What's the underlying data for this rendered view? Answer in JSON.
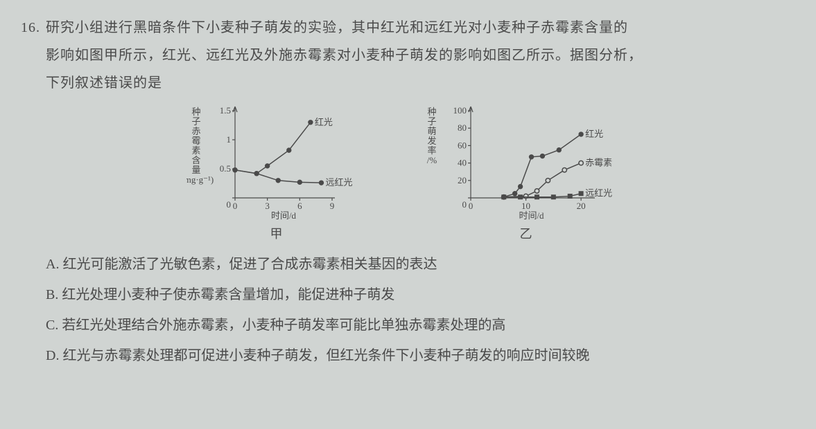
{
  "question": {
    "number": "16.",
    "line1": "研究小组进行黑暗条件下小麦种子萌发的实验，其中红光和远红光对小麦种子赤霉素含量的",
    "line2": "影响如图甲所示，红光、远红光及外施赤霉素对小麦种子萌发的影响如图乙所示。据图分析，",
    "line3": "下列叙述错误的是"
  },
  "chartA": {
    "caption": "甲",
    "ylabel": "种子赤霉素含量/(mg·g⁻¹)",
    "ylabel_chars": [
      "种",
      "子",
      "赤",
      "霉",
      "素",
      "含",
      "量",
      "/(mg·g⁻¹)"
    ],
    "xlabel": "时间/d",
    "xlim": [
      0,
      9
    ],
    "ylim": [
      0,
      1.5
    ],
    "xticks": [
      0,
      3,
      6,
      9
    ],
    "yticks": [
      0,
      0.5,
      1.0,
      1.5
    ],
    "series": [
      {
        "name": "红光",
        "label": "红光",
        "marker": "circle-fill",
        "color": "#4a4a4a",
        "points": [
          [
            0,
            0.48
          ],
          [
            2,
            0.42
          ],
          [
            3,
            0.55
          ],
          [
            5,
            0.82
          ],
          [
            7,
            1.3
          ]
        ]
      },
      {
        "name": "远红光",
        "label": "远红光",
        "marker": "circle-fill",
        "color": "#4a4a4a",
        "points": [
          [
            0,
            0.48
          ],
          [
            2,
            0.42
          ],
          [
            4,
            0.3
          ],
          [
            6,
            0.27
          ],
          [
            8,
            0.26
          ]
        ]
      }
    ],
    "label_fontsize": 13,
    "tick_fontsize": 13,
    "background": "#d0d4d2"
  },
  "chartB": {
    "caption": "乙",
    "ylabel": "种子萌发率/%",
    "ylabel_chars": [
      "种",
      "子",
      "萌",
      "发",
      "率",
      "/%"
    ],
    "xlabel": "时间/d",
    "xlim": [
      0,
      22
    ],
    "ylim": [
      0,
      100
    ],
    "xticks": [
      0,
      10,
      20
    ],
    "yticks": [
      0,
      20,
      40,
      60,
      80,
      100
    ],
    "series": [
      {
        "name": "红光",
        "label": "红光",
        "marker": "circle-fill",
        "color": "#4a4a4a",
        "points": [
          [
            6,
            1
          ],
          [
            8,
            5
          ],
          [
            9,
            13
          ],
          [
            11,
            47
          ],
          [
            13,
            48
          ],
          [
            16,
            55
          ],
          [
            20,
            73
          ]
        ]
      },
      {
        "name": "赤霉素",
        "label": "赤霉素",
        "marker": "circle-open",
        "color": "#4a4a4a",
        "points": [
          [
            6,
            1
          ],
          [
            10,
            2
          ],
          [
            12,
            8
          ],
          [
            14,
            20
          ],
          [
            17,
            32
          ],
          [
            20,
            40
          ]
        ]
      },
      {
        "name": "远红光",
        "label": "远红光",
        "marker": "square-fill",
        "color": "#4a4a4a",
        "points": [
          [
            6,
            1
          ],
          [
            9,
            1
          ],
          [
            12,
            1
          ],
          [
            15,
            1
          ],
          [
            18,
            2
          ],
          [
            20,
            5
          ]
        ]
      }
    ],
    "label_fontsize": 13,
    "tick_fontsize": 13,
    "background": "#d0d4d2"
  },
  "options": {
    "A": "A. 红光可能激活了光敏色素，促进了合成赤霉素相关基因的表达",
    "B": "B. 红光处理小麦种子使赤霉素含量增加，能促进种子萌发",
    "C": "C. 若红光处理结合外施赤霉素，小麦种子萌发率可能比单独赤霉素处理的高",
    "D": "D. 红光与赤霉素处理都可促进小麦种子萌发，但红光条件下小麦种子萌发的响应时间较晚"
  }
}
